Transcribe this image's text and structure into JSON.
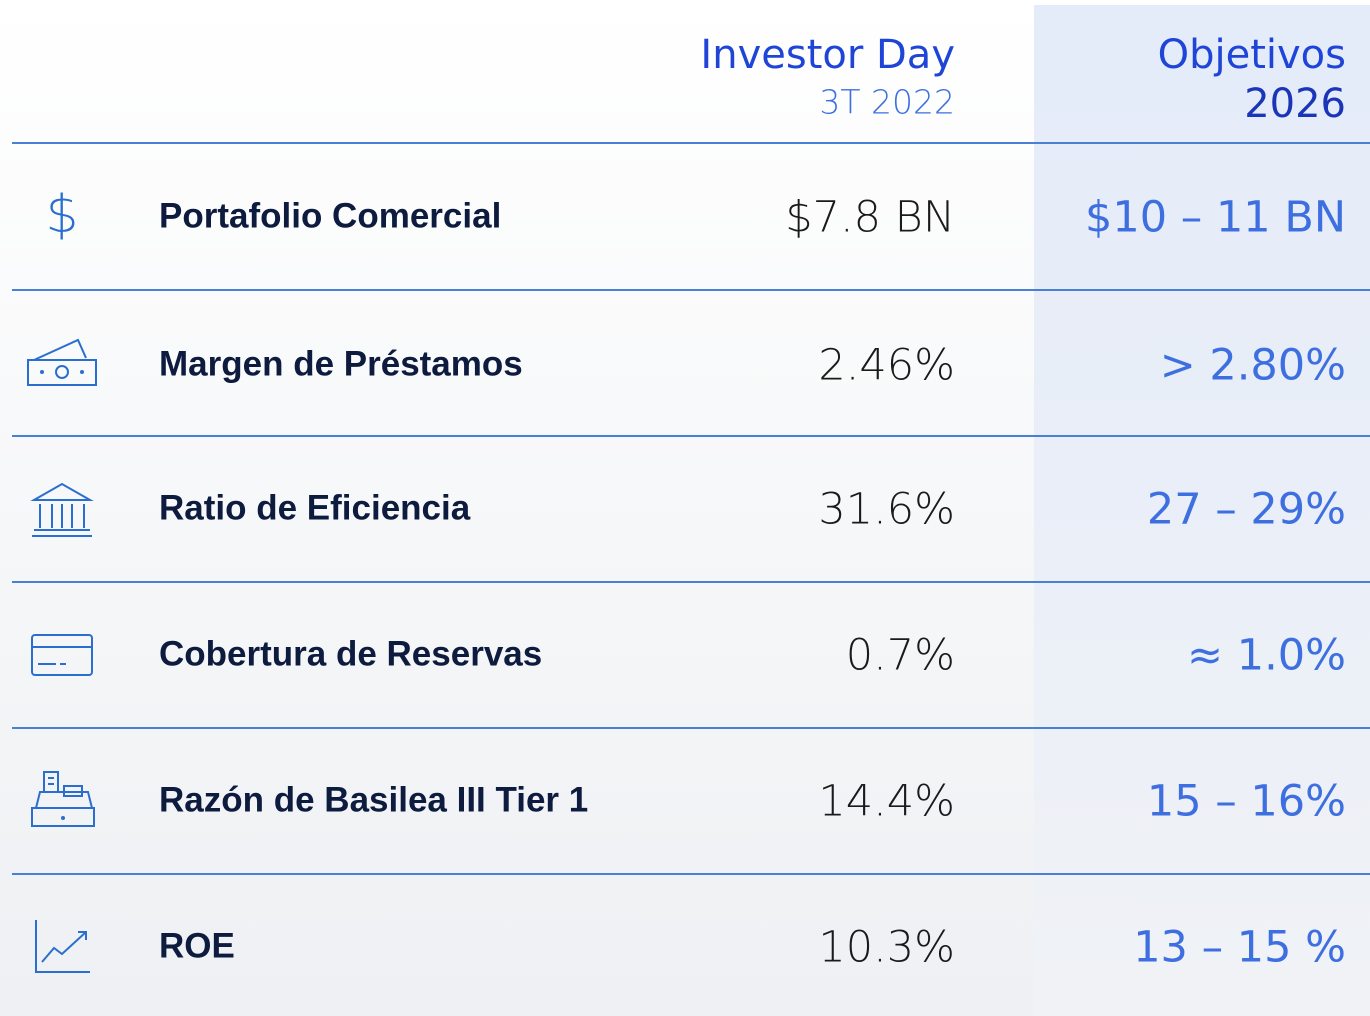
{
  "header": {
    "col1_title": "Investor Day",
    "col1_subtitle": "3T 2022",
    "col2_title": "Objetivos",
    "col2_subtitle": "2026"
  },
  "table": {
    "rows": [
      [
        "Portafolio Comercial",
        "$7.8 BN",
        "$10 – 11 BN"
      ],
      [
        "Margen de Préstamos",
        "2.46%",
        "> 2.80%"
      ],
      [
        "Ratio de Eficiencia",
        "31.6%",
        "27 – 29%"
      ],
      [
        "Cobertura de Reservas",
        "0.7%",
        "≈ 1.0%"
      ],
      [
        "Razón de Basilea III Tier 1",
        "14.4%",
        "15 – 16%"
      ],
      [
        "ROE",
        "10.3%",
        "13 – 15 %"
      ]
    ]
  }
}
